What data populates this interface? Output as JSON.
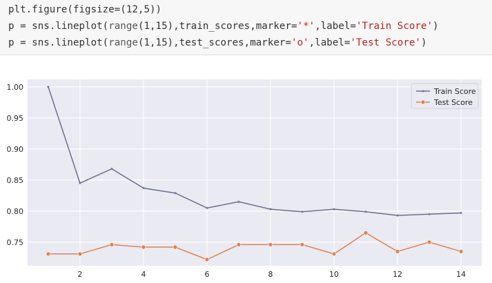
{
  "code_cell": {
    "lines": [
      {
        "parts": [
          {
            "text": "plt.figure(figsize=(12,5))",
            "kind": "plain"
          }
        ]
      },
      {
        "parts": [
          {
            "text": "p = sns.lineplot(",
            "kind": "plain"
          },
          {
            "text": "range",
            "kind": "kw"
          },
          {
            "text": "(1,15),train_scores,marker=",
            "kind": "plain"
          },
          {
            "text": "'*'",
            "kind": "str"
          },
          {
            "text": ",label=",
            "kind": "plain"
          },
          {
            "text": "'Train Score'",
            "kind": "str"
          },
          {
            "text": ")",
            "kind": "plain"
          }
        ]
      },
      {
        "parts": [
          {
            "text": "p = sns.lineplot(",
            "kind": "plain"
          },
          {
            "text": "range",
            "kind": "kw"
          },
          {
            "text": "(1,15),test_scores,marker=",
            "kind": "plain"
          },
          {
            "text": "'o'",
            "kind": "str"
          },
          {
            "text": ",label=",
            "kind": "plain"
          },
          {
            "text": "'Test Score'",
            "kind": "str"
          },
          {
            "text": ")",
            "kind": "plain"
          }
        ]
      }
    ]
  },
  "colors": {
    "plot_background": "#eaeaf2",
    "grid": "#ffffff",
    "train": "#6a6f8c",
    "test": "#dd8452",
    "string": "#ba2121"
  },
  "chart_data": {
    "type": "line",
    "title": "",
    "xlabel": "",
    "ylabel": "",
    "x": [
      1,
      2,
      3,
      4,
      5,
      6,
      7,
      8,
      9,
      10,
      11,
      12,
      13,
      14
    ],
    "xticks": [
      2,
      4,
      6,
      8,
      10,
      12,
      14
    ],
    "yticks": [
      0.75,
      0.8,
      0.85,
      0.9,
      0.95,
      1.0
    ],
    "ytick_labels": [
      "0.75",
      "0.80",
      "0.85",
      "0.90",
      "0.95",
      "1.00"
    ],
    "xlim": [
      0.35,
      14.65
    ],
    "ylim": [
      0.712,
      1.012
    ],
    "grid": true,
    "legend_position": "top-right",
    "series": [
      {
        "name": "Train Score",
        "marker": "*",
        "color": "#6a6f8c",
        "values": [
          1.0,
          0.845,
          0.868,
          0.837,
          0.829,
          0.805,
          0.815,
          0.803,
          0.799,
          0.803,
          0.799,
          0.793,
          0.795,
          0.797
        ]
      },
      {
        "name": "Test Score",
        "marker": "o",
        "color": "#dd8452",
        "values": [
          0.731,
          0.731,
          0.746,
          0.742,
          0.742,
          0.722,
          0.746,
          0.746,
          0.746,
          0.731,
          0.765,
          0.735,
          0.75,
          0.735
        ]
      }
    ]
  }
}
